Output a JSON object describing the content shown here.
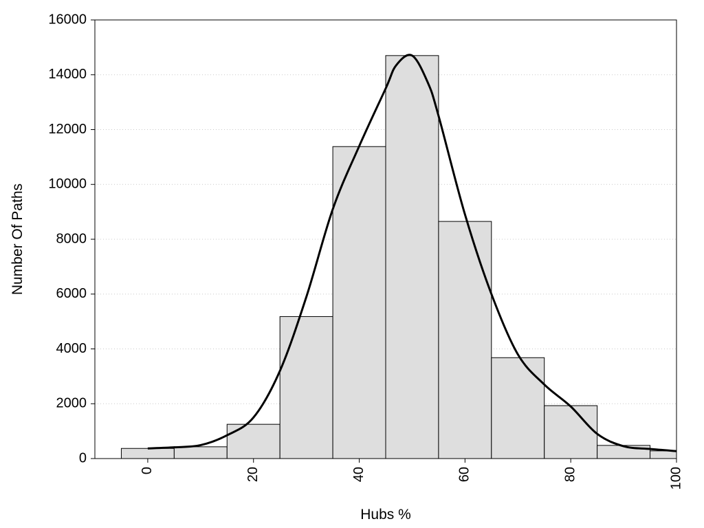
{
  "chart_data": {
    "type": "bar",
    "xlabel": "Hubs %",
    "ylabel": "Number Of Paths",
    "xlim": [
      -10,
      100
    ],
    "ylim": [
      0,
      16000
    ],
    "x_ticks": [
      0,
      20,
      40,
      60,
      80,
      100
    ],
    "y_ticks": [
      0,
      2000,
      4000,
      6000,
      8000,
      10000,
      12000,
      14000,
      16000
    ],
    "grid": "horizontal-dotted",
    "bars": [
      {
        "from": -5,
        "to": 5,
        "value": 370
      },
      {
        "from": 5,
        "to": 15,
        "value": 430
      },
      {
        "from": 15,
        "to": 25,
        "value": 1250
      },
      {
        "from": 25,
        "to": 35,
        "value": 5180
      },
      {
        "from": 35,
        "to": 45,
        "value": 11380
      },
      {
        "from": 45,
        "to": 55,
        "value": 14700
      },
      {
        "from": 55,
        "to": 65,
        "value": 8650
      },
      {
        "from": 65,
        "to": 75,
        "value": 3680
      },
      {
        "from": 75,
        "to": 85,
        "value": 1930
      },
      {
        "from": 85,
        "to": 95,
        "value": 480
      },
      {
        "from": 95,
        "to": 100,
        "value": 280
      }
    ],
    "density_curve": {
      "x": [
        0,
        5,
        10,
        15,
        20,
        25,
        30,
        35,
        40,
        45,
        47,
        50,
        53,
        55,
        60,
        65,
        70,
        75,
        80,
        85,
        90,
        95,
        100
      ],
      "y": [
        370,
        410,
        490,
        850,
        1500,
        3200,
        5900,
        9100,
        11400,
        13500,
        14350,
        14700,
        13700,
        12500,
        8900,
        6000,
        3800,
        2700,
        1900,
        900,
        450,
        350,
        270
      ]
    },
    "colors": {
      "bar_fill": "#dedede",
      "bar_stroke": "#000000",
      "curve": "#000000",
      "grid": "#c8c8c8"
    }
  }
}
